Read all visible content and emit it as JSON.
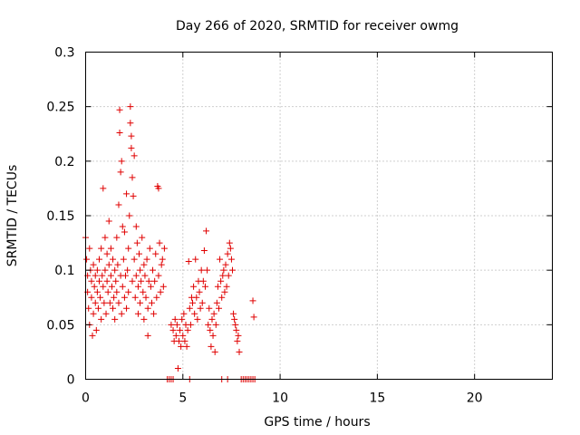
{
  "chart_data": {
    "type": "scatter",
    "title": "Day 266 of 2020, SRMTID for receiver owmg",
    "xlabel": "GPS time / hours",
    "ylabel": "SRMTID / TECUs",
    "xlim": [
      0,
      24
    ],
    "ylim": [
      0,
      0.3
    ],
    "xticks": [
      0,
      5,
      10,
      15,
      20
    ],
    "xtick_labels": [
      "0",
      "5",
      "10",
      "15",
      "20"
    ],
    "yticks": [
      0,
      0.05,
      0.1,
      0.15,
      0.2,
      0.25,
      0.3
    ],
    "ytick_labels": [
      "0",
      "0.05",
      "0.1",
      "0.15",
      "0.2",
      "0.25",
      "0.3"
    ],
    "grid": true,
    "marker": "plus",
    "color": "#e00000",
    "series": [
      {
        "name": "SRMTID",
        "points": [
          [
            0.0,
            0.13
          ],
          [
            0.05,
            0.11
          ],
          [
            0.1,
            0.095
          ],
          [
            0.1,
            0.08
          ],
          [
            0.15,
            0.065
          ],
          [
            0.2,
            0.12
          ],
          [
            0.2,
            0.05
          ],
          [
            0.25,
            0.1
          ],
          [
            0.3,
            0.09
          ],
          [
            0.3,
            0.075
          ],
          [
            0.35,
            0.04
          ],
          [
            0.4,
            0.105
          ],
          [
            0.4,
            0.06
          ],
          [
            0.45,
            0.085
          ],
          [
            0.5,
            0.095
          ],
          [
            0.5,
            0.07
          ],
          [
            0.55,
            0.045
          ],
          [
            0.6,
            0.1
          ],
          [
            0.6,
            0.08
          ],
          [
            0.65,
            0.065
          ],
          [
            0.7,
            0.09
          ],
          [
            0.7,
            0.11
          ],
          [
            0.75,
            0.075
          ],
          [
            0.8,
            0.055
          ],
          [
            0.8,
            0.12
          ],
          [
            0.85,
            0.095
          ],
          [
            0.9,
            0.175
          ],
          [
            0.9,
            0.085
          ],
          [
            0.95,
            0.07
          ],
          [
            1.0,
            0.1
          ],
          [
            1.0,
            0.13
          ],
          [
            1.05,
            0.06
          ],
          [
            1.1,
            0.115
          ],
          [
            1.1,
            0.09
          ],
          [
            1.15,
            0.08
          ],
          [
            1.2,
            0.145
          ],
          [
            1.2,
            0.105
          ],
          [
            1.25,
            0.07
          ],
          [
            1.3,
            0.095
          ],
          [
            1.3,
            0.12
          ],
          [
            1.35,
            0.085
          ],
          [
            1.4,
            0.065
          ],
          [
            1.4,
            0.11
          ],
          [
            1.45,
            0.075
          ],
          [
            1.5,
            0.1
          ],
          [
            1.5,
            0.055
          ],
          [
            1.55,
            0.09
          ],
          [
            1.6,
            0.13
          ],
          [
            1.6,
            0.08
          ],
          [
            1.65,
            0.105
          ],
          [
            1.7,
            0.07
          ],
          [
            1.7,
            0.16
          ],
          [
            1.75,
            0.247
          ],
          [
            1.75,
            0.226
          ],
          [
            1.8,
            0.19
          ],
          [
            1.8,
            0.095
          ],
          [
            1.85,
            0.2
          ],
          [
            1.85,
            0.06
          ],
          [
            1.9,
            0.14
          ],
          [
            1.9,
            0.085
          ],
          [
            1.95,
            0.11
          ],
          [
            2.0,
            0.075
          ],
          [
            2.0,
            0.135
          ],
          [
            2.05,
            0.095
          ],
          [
            2.1,
            0.17
          ],
          [
            2.1,
            0.065
          ],
          [
            2.15,
            0.1
          ],
          [
            2.2,
            0.12
          ],
          [
            2.2,
            0.08
          ],
          [
            2.25,
            0.15
          ],
          [
            2.3,
            0.25
          ],
          [
            2.3,
            0.235
          ],
          [
            2.35,
            0.223
          ],
          [
            2.35,
            0.212
          ],
          [
            2.4,
            0.185
          ],
          [
            2.4,
            0.09
          ],
          [
            2.45,
            0.168
          ],
          [
            2.5,
            0.205
          ],
          [
            2.5,
            0.11
          ],
          [
            2.55,
            0.075
          ],
          [
            2.6,
            0.14
          ],
          [
            2.6,
            0.095
          ],
          [
            2.65,
            0.125
          ],
          [
            2.7,
            0.085
          ],
          [
            2.7,
            0.06
          ],
          [
            2.75,
            0.115
          ],
          [
            2.8,
            0.1
          ],
          [
            2.8,
            0.07
          ],
          [
            2.85,
            0.09
          ],
          [
            2.9,
            0.13
          ],
          [
            2.95,
            0.08
          ],
          [
            3.0,
            0.105
          ],
          [
            3.0,
            0.055
          ],
          [
            3.05,
            0.095
          ],
          [
            3.1,
            0.075
          ],
          [
            3.15,
            0.11
          ],
          [
            3.2,
            0.065
          ],
          [
            3.2,
            0.04
          ],
          [
            3.25,
            0.09
          ],
          [
            3.3,
            0.12
          ],
          [
            3.35,
            0.085
          ],
          [
            3.4,
            0.07
          ],
          [
            3.45,
            0.1
          ],
          [
            3.5,
            0.06
          ],
          [
            3.55,
            0.09
          ],
          [
            3.6,
            0.115
          ],
          [
            3.65,
            0.075
          ],
          [
            3.7,
            0.177
          ],
          [
            3.75,
            0.175
          ],
          [
            3.75,
            0.095
          ],
          [
            3.8,
            0.125
          ],
          [
            3.85,
            0.08
          ],
          [
            3.9,
            0.105
          ],
          [
            3.95,
            0.11
          ],
          [
            4.0,
            0.085
          ],
          [
            4.05,
            0.12
          ],
          [
            4.4,
            0.05
          ],
          [
            4.5,
            0.045
          ],
          [
            4.55,
            0.035
          ],
          [
            4.6,
            0.055
          ],
          [
            4.65,
            0.04
          ],
          [
            4.7,
            0.05
          ],
          [
            4.75,
            0.01
          ],
          [
            4.8,
            0.035
          ],
          [
            4.85,
            0.045
          ],
          [
            4.9,
            0.03
          ],
          [
            4.95,
            0.055
          ],
          [
            5.0,
            0.04
          ],
          [
            5.05,
            0.06
          ],
          [
            5.1,
            0.035
          ],
          [
            5.15,
            0.05
          ],
          [
            5.2,
            0.03
          ],
          [
            5.25,
            0.045
          ],
          [
            5.3,
            0.108
          ],
          [
            5.35,
            0.065
          ],
          [
            5.4,
            0.05
          ],
          [
            5.45,
            0.075
          ],
          [
            5.5,
            0.07
          ],
          [
            5.55,
            0.085
          ],
          [
            5.6,
            0.06
          ],
          [
            5.65,
            0.11
          ],
          [
            5.7,
            0.075
          ],
          [
            5.75,
            0.055
          ],
          [
            5.8,
            0.09
          ],
          [
            5.85,
            0.08
          ],
          [
            5.9,
            0.065
          ],
          [
            5.95,
            0.1
          ],
          [
            6.0,
            0.07
          ],
          [
            6.05,
            0.09
          ],
          [
            6.1,
            0.118
          ],
          [
            6.15,
            0.085
          ],
          [
            6.2,
            0.136
          ],
          [
            6.25,
            0.1
          ],
          [
            6.3,
            0.05
          ],
          [
            6.35,
            0.065
          ],
          [
            6.4,
            0.045
          ],
          [
            6.45,
            0.03
          ],
          [
            6.5,
            0.055
          ],
          [
            6.55,
            0.04
          ],
          [
            6.6,
            0.06
          ],
          [
            6.65,
            0.025
          ],
          [
            6.7,
            0.05
          ],
          [
            6.75,
            0.07
          ],
          [
            6.8,
            0.085
          ],
          [
            6.85,
            0.065
          ],
          [
            6.9,
            0.11
          ],
          [
            6.95,
            0.09
          ],
          [
            7.0,
            0.075
          ],
          [
            7.05,
            0.095
          ],
          [
            7.1,
            0.1
          ],
          [
            7.15,
            0.08
          ],
          [
            7.2,
            0.105
          ],
          [
            7.25,
            0.085
          ],
          [
            7.3,
            0.115
          ],
          [
            7.35,
            0.095
          ],
          [
            7.4,
            0.125
          ],
          [
            7.45,
            0.12
          ],
          [
            7.5,
            0.11
          ],
          [
            7.55,
            0.1
          ],
          [
            7.6,
            0.06
          ],
          [
            7.65,
            0.055
          ],
          [
            7.7,
            0.05
          ],
          [
            7.75,
            0.045
          ],
          [
            7.8,
            0.035
          ],
          [
            7.85,
            0.04
          ],
          [
            7.9,
            0.025
          ],
          [
            8.6,
            0.072
          ],
          [
            8.65,
            0.057
          ]
        ]
      }
    ],
    "zero_points_x": [
      4.2,
      4.3,
      4.4,
      4.5,
      5.35,
      7.0,
      7.3,
      8.0,
      8.1,
      8.2,
      8.3,
      8.4,
      8.5,
      8.6,
      8.7
    ]
  }
}
